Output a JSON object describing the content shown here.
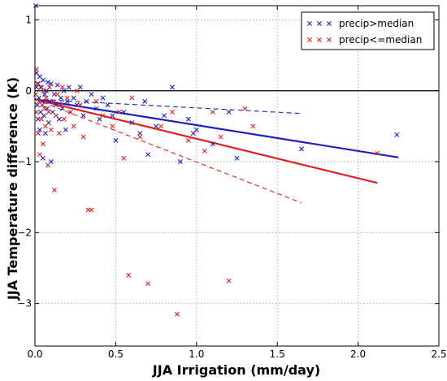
{
  "chart_data": {
    "type": "scatter",
    "xlabel": "JJA Irrigation (mm/day)",
    "ylabel": "JJA Temperature difference (K)",
    "xlim": [
      0,
      2.5
    ],
    "ylim": [
      -3.6,
      1.2
    ],
    "xticks": [
      0.0,
      0.5,
      1.0,
      1.5,
      2.0,
      2.5
    ],
    "xtick_labels": [
      "0.0",
      "0.5",
      "1.0",
      "1.5",
      "2.0",
      "2.5"
    ],
    "yticks": [
      1,
      0,
      -1,
      -2,
      -3
    ],
    "ytick_labels": [
      "1",
      "0",
      "−1",
      "−2",
      "−3"
    ],
    "grid": true,
    "legend_position": "top-right",
    "zero_line": 0,
    "series": [
      {
        "name": "precip>median",
        "color": "#1f1fbf",
        "marker": "x",
        "points": [
          [
            0.005,
            1.2
          ],
          [
            0.01,
            0.25
          ],
          [
            0.01,
            0.05
          ],
          [
            0.015,
            -0.2
          ],
          [
            0.02,
            0.1
          ],
          [
            0.02,
            -0.4
          ],
          [
            0.025,
            -0.1
          ],
          [
            0.03,
            0.2
          ],
          [
            0.03,
            -0.55
          ],
          [
            0.035,
            -0.3
          ],
          [
            0.04,
            0.05
          ],
          [
            0.045,
            -0.15
          ],
          [
            0.05,
            -0.95
          ],
          [
            0.05,
            0.15
          ],
          [
            0.055,
            -0.35
          ],
          [
            0.06,
            -0.05
          ],
          [
            0.065,
            -0.6
          ],
          [
            0.07,
            0.0
          ],
          [
            0.075,
            -0.25
          ],
          [
            0.08,
            0.12
          ],
          [
            0.085,
            -0.45
          ],
          [
            0.09,
            -0.15
          ],
          [
            0.1,
            -1.0
          ],
          [
            0.1,
            0.1
          ],
          [
            0.11,
            -0.3
          ],
          [
            0.12,
            -0.05
          ],
          [
            0.13,
            -0.2
          ],
          [
            0.14,
            0.08
          ],
          [
            0.15,
            -0.4
          ],
          [
            0.16,
            -0.1
          ],
          [
            0.17,
            -0.25
          ],
          [
            0.18,
            0.0
          ],
          [
            0.19,
            -0.55
          ],
          [
            0.2,
            -0.15
          ],
          [
            0.21,
            0.05
          ],
          [
            0.22,
            -0.3
          ],
          [
            0.24,
            -0.1
          ],
          [
            0.26,
            -0.2
          ],
          [
            0.28,
            0.05
          ],
          [
            0.3,
            -0.35
          ],
          [
            0.32,
            -0.15
          ],
          [
            0.35,
            -0.05
          ],
          [
            0.38,
            -0.25
          ],
          [
            0.4,
            -0.4
          ],
          [
            0.42,
            -0.1
          ],
          [
            0.45,
            -0.2
          ],
          [
            0.48,
            -0.35
          ],
          [
            0.5,
            -0.7
          ],
          [
            0.55,
            -0.3
          ],
          [
            0.6,
            -0.45
          ],
          [
            0.65,
            -0.6
          ],
          [
            0.68,
            -0.15
          ],
          [
            0.7,
            -0.9
          ],
          [
            0.75,
            -0.5
          ],
          [
            0.8,
            -0.35
          ],
          [
            0.85,
            0.05
          ],
          [
            0.9,
            -1.0
          ],
          [
            0.95,
            -0.4
          ],
          [
            0.98,
            -0.6
          ],
          [
            1.0,
            -0.55
          ],
          [
            1.1,
            -0.75
          ],
          [
            1.2,
            -0.3
          ],
          [
            1.25,
            -0.95
          ],
          [
            1.65,
            -0.82
          ],
          [
            2.24,
            -0.62
          ]
        ]
      },
      {
        "name": "precip<=median",
        "color": "#e02020",
        "marker": "x",
        "points": [
          [
            0.005,
            -0.05
          ],
          [
            0.01,
            0.3
          ],
          [
            0.01,
            -0.3
          ],
          [
            0.015,
            0.1
          ],
          [
            0.02,
            -0.6
          ],
          [
            0.025,
            -0.15
          ],
          [
            0.03,
            -0.9
          ],
          [
            0.035,
            0.05
          ],
          [
            0.04,
            -0.4
          ],
          [
            0.045,
            -0.2
          ],
          [
            0.05,
            -0.75
          ],
          [
            0.055,
            0.0
          ],
          [
            0.06,
            -0.25
          ],
          [
            0.065,
            -0.5
          ],
          [
            0.07,
            -0.1
          ],
          [
            0.08,
            -1.05
          ],
          [
            0.085,
            -0.3
          ],
          [
            0.09,
            0.05
          ],
          [
            0.1,
            -0.55
          ],
          [
            0.11,
            -0.15
          ],
          [
            0.12,
            -1.4
          ],
          [
            0.13,
            -0.35
          ],
          [
            0.14,
            -0.05
          ],
          [
            0.15,
            -0.6
          ],
          [
            0.16,
            -0.2
          ],
          [
            0.17,
            0.05
          ],
          [
            0.18,
            -0.4
          ],
          [
            0.2,
            -0.1
          ],
          [
            0.22,
            -0.3
          ],
          [
            0.24,
            -0.5
          ],
          [
            0.26,
            0.0
          ],
          [
            0.28,
            -0.2
          ],
          [
            0.3,
            -0.65
          ],
          [
            0.33,
            -1.68
          ],
          [
            0.35,
            -1.68
          ],
          [
            0.38,
            -0.15
          ],
          [
            0.42,
            -0.35
          ],
          [
            0.48,
            -0.5
          ],
          [
            0.52,
            -0.3
          ],
          [
            0.55,
            -0.95
          ],
          [
            0.58,
            -2.6
          ],
          [
            0.6,
            -0.1
          ],
          [
            0.65,
            -0.65
          ],
          [
            0.7,
            -2.72
          ],
          [
            0.78,
            -0.5
          ],
          [
            0.85,
            -0.3
          ],
          [
            0.88,
            -3.15
          ],
          [
            0.95,
            -0.7
          ],
          [
            1.05,
            -0.85
          ],
          [
            1.1,
            -0.3
          ],
          [
            1.15,
            -0.65
          ],
          [
            1.2,
            -2.68
          ],
          [
            1.3,
            -0.25
          ],
          [
            1.35,
            -0.5
          ],
          [
            2.12,
            -0.88
          ]
        ]
      }
    ],
    "fit_lines": [
      {
        "series": "precip>median",
        "style": "solid",
        "x": [
          0.0,
          2.25
        ],
        "y": [
          -0.12,
          -0.94
        ]
      },
      {
        "series": "precip>median",
        "style": "dashed",
        "x": [
          0.0,
          1.65
        ],
        "y": [
          -0.12,
          -0.32
        ]
      },
      {
        "series": "precip<=median",
        "style": "solid",
        "x": [
          0.0,
          2.12
        ],
        "y": [
          -0.12,
          -1.3
        ]
      },
      {
        "series": "precip<=median",
        "style": "dashed",
        "x": [
          0.0,
          1.65
        ],
        "y": [
          -0.12,
          -1.58
        ]
      }
    ]
  }
}
